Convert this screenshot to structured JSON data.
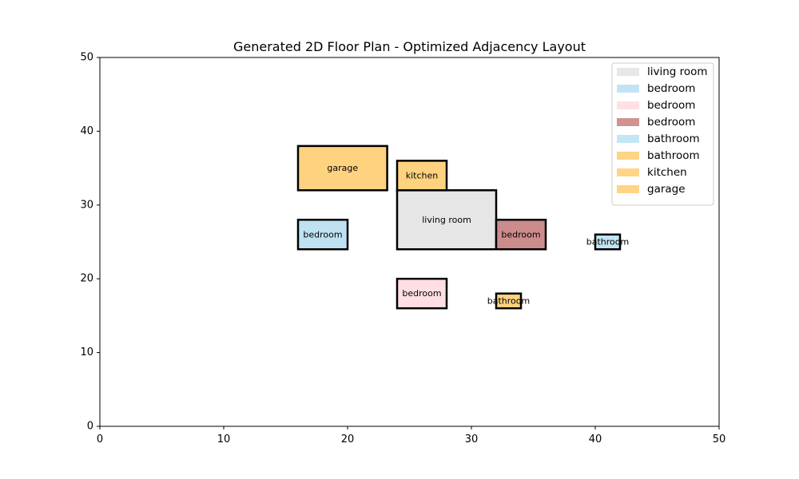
{
  "chart_data": {
    "type": "floor-plan",
    "title": "Generated 2D Floor Plan - Optimized Adjacency Layout",
    "xlim": [
      0,
      50
    ],
    "ylim": [
      0,
      50
    ],
    "xticks": [
      0,
      10,
      20,
      30,
      40,
      50
    ],
    "yticks": [
      0,
      10,
      20,
      30,
      40,
      50
    ],
    "grid": false,
    "legend_position": "top-right",
    "rooms": [
      {
        "name": "living room",
        "x": 24,
        "y": 24,
        "w": 8,
        "h": 8,
        "color": "#e6e6e6"
      },
      {
        "name": "bedroom",
        "x": 16,
        "y": 24,
        "w": 4,
        "h": 4,
        "color": "#bfe2f2"
      },
      {
        "name": "bedroom",
        "x": 24,
        "y": 16,
        "w": 4,
        "h": 4,
        "color": "#ffdfe3"
      },
      {
        "name": "bedroom",
        "x": 32,
        "y": 24,
        "w": 4,
        "h": 4,
        "color": "#cd8c8c"
      },
      {
        "name": "bathroom",
        "x": 40,
        "y": 24,
        "w": 2,
        "h": 2,
        "color": "#c0e5f4"
      },
      {
        "name": "bathroom",
        "x": 32,
        "y": 16,
        "w": 2,
        "h": 2,
        "color": "#ffd27f"
      },
      {
        "name": "kitchen",
        "x": 24,
        "y": 32,
        "w": 4,
        "h": 4,
        "color": "#ffd27f"
      },
      {
        "name": "garage",
        "x": 16,
        "y": 32,
        "w": 7.2,
        "h": 6,
        "color": "#ffd27f"
      }
    ]
  }
}
